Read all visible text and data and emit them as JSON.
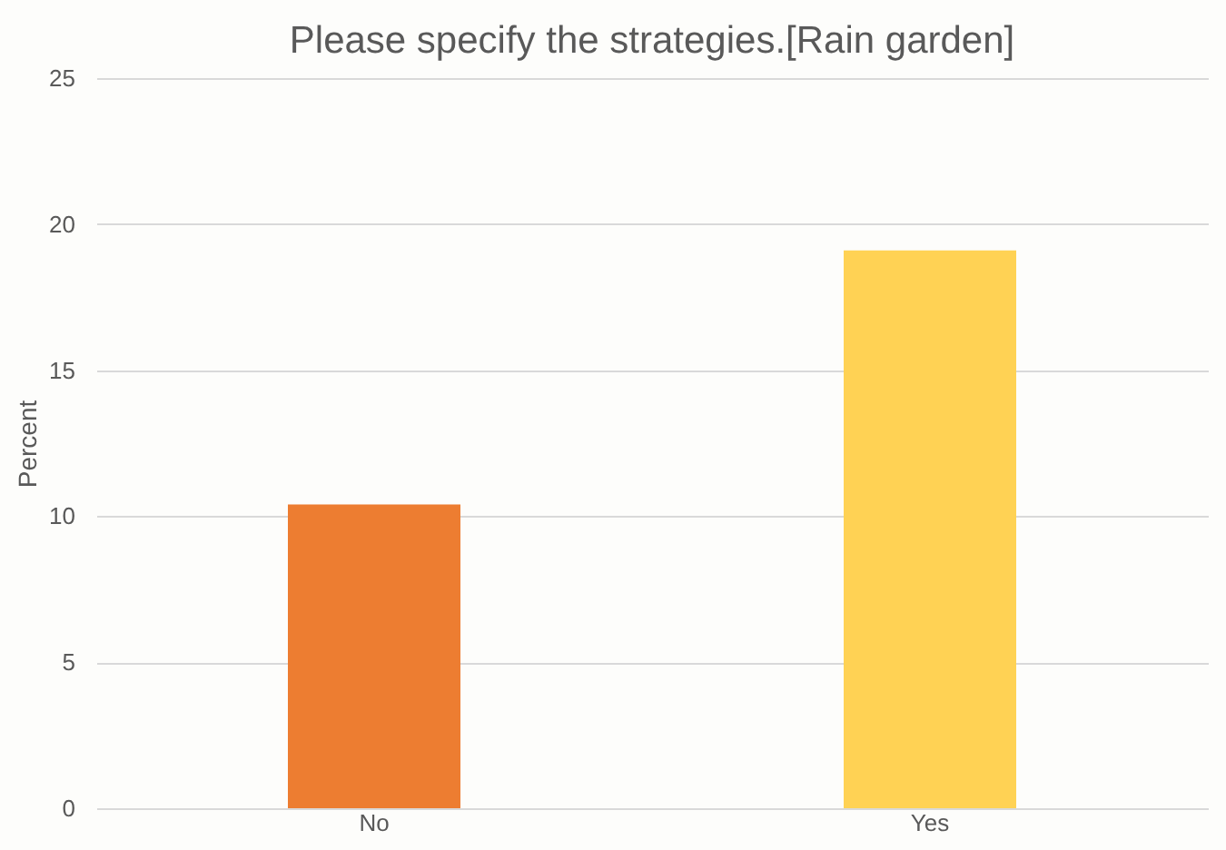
{
  "chart_data": {
    "type": "bar",
    "title": "Please specify the strategies.[Rain garden]",
    "ylabel": "Percent",
    "categories": [
      "No",
      "Yes"
    ],
    "values": [
      10.4,
      19.1
    ],
    "colors": [
      "#ed7d31",
      "#ffd254"
    ],
    "ylim": [
      0,
      25
    ],
    "yticks": [
      0,
      5,
      10,
      15,
      20,
      25
    ],
    "grid": "y"
  }
}
